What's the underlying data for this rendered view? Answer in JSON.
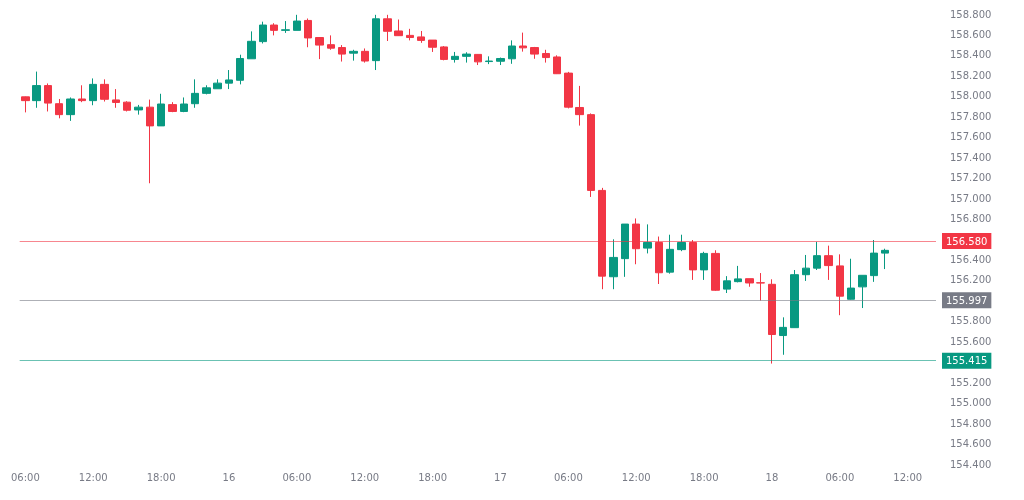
{
  "chart_data": {
    "type": "candlestick",
    "categories": [
      "06:00",
      null,
      null,
      null,
      null,
      null,
      "12:00",
      null,
      null,
      null,
      null,
      null,
      "18:00",
      null,
      null,
      null,
      null,
      null,
      "16",
      null,
      null,
      null,
      null,
      null,
      "06:00",
      null,
      null,
      null,
      null,
      null,
      "12:00",
      null,
      null,
      null,
      null,
      null,
      "18:00",
      null,
      null,
      null,
      null,
      null,
      "17",
      null,
      null,
      null,
      null,
      null,
      "06:00",
      null,
      null,
      null,
      null,
      null,
      "12:00",
      null,
      null,
      null,
      null,
      null,
      "18:00",
      null,
      null,
      null,
      null,
      null,
      "18",
      null,
      null,
      null,
      null,
      null,
      "06:00",
      null,
      null,
      null,
      null,
      null,
      "12:00",
      null,
      null
    ],
    "ohlc": [
      [
        157.99,
        157.993,
        157.838,
        157.953
      ],
      [
        157.953,
        158.237,
        157.883,
        158.1
      ],
      [
        158.1,
        158.121,
        157.847,
        157.929
      ],
      [
        157.923,
        157.969,
        157.78,
        157.816
      ],
      [
        157.816,
        157.984,
        157.755,
        157.969
      ],
      [
        157.969,
        158.103,
        157.938,
        157.953
      ],
      [
        157.953,
        158.17,
        157.908,
        158.112
      ],
      [
        158.112,
        158.161,
        157.944,
        157.966
      ],
      [
        157.96,
        158.066,
        157.883,
        157.935
      ],
      [
        157.938,
        157.947,
        157.847,
        157.859
      ],
      [
        157.862,
        157.911,
        157.816,
        157.889
      ],
      [
        157.889,
        157.963,
        157.145,
        157.706
      ],
      [
        157.706,
        158.02,
        157.706,
        157.92
      ],
      [
        157.914,
        157.938,
        157.84,
        157.847
      ],
      [
        157.847,
        157.984,
        157.84,
        157.92
      ],
      [
        157.923,
        158.161,
        157.883,
        158.024
      ],
      [
        158.024,
        158.103,
        158.014,
        158.078
      ],
      [
        158.069,
        158.161,
        158.069,
        158.124
      ],
      [
        158.124,
        158.252,
        158.066,
        158.155
      ],
      [
        158.152,
        158.402,
        158.112,
        158.365
      ],
      [
        158.362,
        158.63,
        158.362,
        158.533
      ],
      [
        158.53,
        158.725,
        158.512,
        158.692
      ],
      [
        158.692,
        158.71,
        158.591,
        158.64
      ],
      [
        158.64,
        158.731,
        158.615,
        158.646
      ],
      [
        158.64,
        158.792,
        158.64,
        158.731
      ],
      [
        158.737,
        158.756,
        158.475,
        158.566
      ],
      [
        158.57,
        158.573,
        158.359,
        158.496
      ],
      [
        158.5,
        158.591,
        158.45,
        158.466
      ],
      [
        158.472,
        158.496,
        158.335,
        158.408
      ],
      [
        158.417,
        158.45,
        158.344,
        158.435
      ],
      [
        158.435,
        158.463,
        158.325,
        158.34
      ],
      [
        158.344,
        158.792,
        158.252,
        158.753
      ],
      [
        158.753,
        158.792,
        158.536,
        158.631
      ],
      [
        158.634,
        158.746,
        158.585,
        158.588
      ],
      [
        158.591,
        158.655,
        158.542,
        158.57
      ],
      [
        158.576,
        158.634,
        158.518,
        158.542
      ],
      [
        158.545,
        158.545,
        158.429,
        158.475
      ],
      [
        158.478,
        158.487,
        158.347,
        158.356
      ],
      [
        158.356,
        158.429,
        158.325,
        158.386
      ],
      [
        158.386,
        158.426,
        158.325,
        158.408
      ],
      [
        158.405,
        158.408,
        158.301,
        158.332
      ],
      [
        158.335,
        158.386,
        158.31,
        158.34
      ],
      [
        158.338,
        158.374,
        158.301,
        158.365
      ],
      [
        158.362,
        158.542,
        158.313,
        158.487
      ],
      [
        158.487,
        158.618,
        158.432,
        158.469
      ],
      [
        158.472,
        158.478,
        158.362,
        158.408
      ],
      [
        158.414,
        158.45,
        158.325,
        158.374
      ],
      [
        158.38,
        158.396,
        158.213,
        158.216
      ],
      [
        158.222,
        158.234,
        157.877,
        157.889
      ],
      [
        157.886,
        158.097,
        157.709,
        157.816
      ],
      [
        157.816,
        157.828,
        157.011,
        157.075
      ],
      [
        157.075,
        157.1,
        156.109,
        156.237
      ],
      [
        156.231,
        156.597,
        156.109,
        156.42
      ],
      [
        156.408,
        156.746,
        156.23,
        156.746
      ],
      [
        156.746,
        156.801,
        156.353,
        156.505
      ],
      [
        156.511,
        156.743,
        156.459,
        156.566
      ],
      [
        156.566,
        156.624,
        156.16,
        156.27
      ],
      [
        156.276,
        156.642,
        156.261,
        156.499
      ],
      [
        156.496,
        156.642,
        156.481,
        156.566
      ],
      [
        156.566,
        156.59,
        156.2,
        156.298
      ],
      [
        156.298,
        156.475,
        156.2,
        156.459
      ],
      [
        156.459,
        156.49,
        156.093,
        156.099
      ],
      [
        156.11,
        156.237,
        156.072,
        156.191
      ],
      [
        156.183,
        156.337,
        156.176,
        156.21
      ],
      [
        156.212,
        156.212,
        156.133,
        156.17
      ],
      [
        156.172,
        156.267,
        155.998,
        156.17
      ],
      [
        156.157,
        156.206,
        155.382,
        155.666
      ],
      [
        155.656,
        155.834,
        155.468,
        155.736
      ],
      [
        155.733,
        156.297,
        155.733,
        156.251
      ],
      [
        156.251,
        156.444,
        156.19,
        156.315
      ],
      [
        156.315,
        156.572,
        156.297,
        156.437
      ],
      [
        156.437,
        156.535,
        156.2,
        156.34
      ],
      [
        156.337,
        156.45,
        155.855,
        156.041
      ],
      [
        156.011,
        156.407,
        156.007,
        156.12
      ],
      [
        156.132,
        156.245,
        155.925,
        156.245
      ],
      [
        156.242,
        156.59,
        156.181,
        156.462
      ],
      [
        156.462,
        156.505,
        156.306,
        156.489
      ],
      null,
      null,
      null,
      null
    ],
    "colors": [
      "#f23645",
      "#089981",
      "#f23645",
      "#f23645",
      "#089981",
      "#f23645",
      "#089981",
      "#f23645",
      "#f23645",
      "#f23645",
      "#089981",
      "#f23645",
      "#089981",
      "#f23645",
      "#089981",
      "#089981",
      "#089981",
      "#089981",
      "#089981",
      "#089981",
      "#089981",
      "#089981",
      "#f23645",
      "#089981",
      "#089981",
      "#f23645",
      "#f23645",
      "#f23645",
      "#f23645",
      "#089981",
      "#f23645",
      "#089981",
      "#f23645",
      "#f23645",
      "#f23645",
      "#f23645",
      "#f23645",
      "#f23645",
      "#089981",
      "#089981",
      "#f23645",
      "#089981",
      "#089981",
      "#089981",
      "#f23645",
      "#f23645",
      "#f23645",
      "#f23645",
      "#f23645",
      "#f23645",
      "#f23645",
      "#f23645",
      "#089981",
      "#089981",
      "#f23645",
      "#089981",
      "#f23645",
      "#089981",
      "#089981",
      "#f23645",
      "#089981",
      "#f23645",
      "#089981",
      "#089981",
      "#f23645",
      "#f23645",
      "#f23645",
      "#089981",
      "#089981",
      "#089981",
      "#089981",
      "#f23645",
      "#f23645",
      "#089981",
      "#089981",
      "#089981",
      "#089981",
      null,
      null,
      null,
      null
    ],
    "ylim": [
      154.4,
      158.8
    ],
    "yticks": [
      {
        "value": 154.4,
        "label": "154.400"
      },
      {
        "value": 154.6,
        "label": "154.600"
      },
      {
        "value": 154.8,
        "label": "154.800"
      },
      {
        "value": 155.0,
        "label": "155.000"
      },
      {
        "value": 155.2,
        "label": "155.200"
      },
      {
        "value": 155.6,
        "label": "155.600"
      },
      {
        "value": 155.8,
        "label": "155.800"
      },
      {
        "value": 156.2,
        "label": "156.200"
      },
      {
        "value": 156.4,
        "label": "156.400"
      },
      {
        "value": 156.8,
        "label": "156.800"
      },
      {
        "value": 157.0,
        "label": "157.000"
      },
      {
        "value": 157.2,
        "label": "157.200"
      },
      {
        "value": 157.4,
        "label": "157.400"
      },
      {
        "value": 157.6,
        "label": "157.600"
      },
      {
        "value": 157.8,
        "label": "157.800"
      },
      {
        "value": 158.0,
        "label": "158.000"
      },
      {
        "value": 158.2,
        "label": "158.200"
      },
      {
        "value": 158.4,
        "label": "158.400"
      },
      {
        "value": 158.6,
        "label": "158.600"
      },
      {
        "value": 158.8,
        "label": "158.800"
      }
    ],
    "ref_lines": [
      {
        "axis": "y",
        "value": 156.58,
        "label": "156.580",
        "color": "#f23645"
      },
      {
        "axis": "y",
        "value": 155.997,
        "label": "155.997",
        "color": "#787b86"
      },
      {
        "axis": "y",
        "value": 155.415,
        "label": "155.415",
        "color": "#089981"
      }
    ],
    "grid": false
  }
}
